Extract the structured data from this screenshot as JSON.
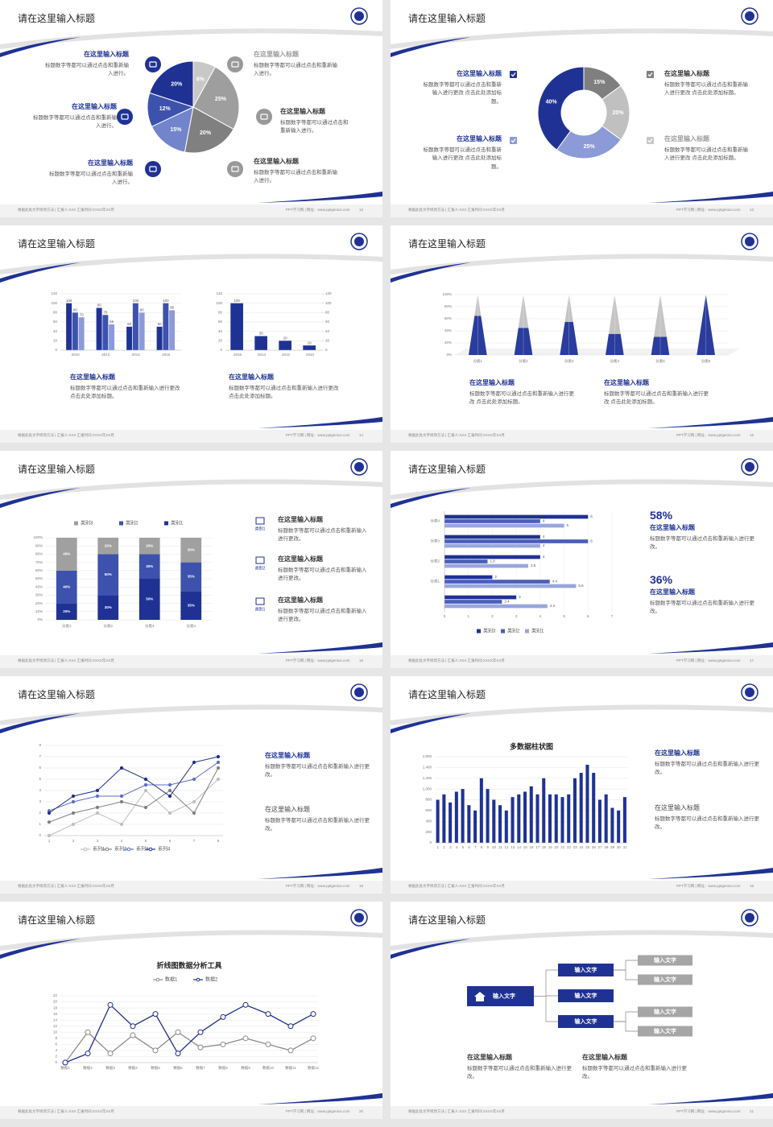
{
  "footer": {
    "left": "根据此处文字修改方法 | 汇报人:XXX 汇报时间:XXXX年XX月",
    "right": "PPT学习网 | 网址：www.pptgenius.com"
  },
  "slides": [
    {
      "title": "请在这里输入标题",
      "page": "12",
      "blocks": [
        {
          "title": "在这里输入标题",
          "body": "标题数字等都可以通过点击和重新输入进行。"
        },
        {
          "title": "在这里输入标题",
          "body": "标题数字等都可以通过点击和重新输入进行。"
        },
        {
          "title": "在这里输入标题",
          "body": "标题数字等都可以通过点击和重新输入进行。"
        },
        {
          "title": "在这里输入标题",
          "body": "标题数字等都可以通过点击和重新输入进行。"
        },
        {
          "title": "在这里输入标题",
          "body": "标题数字等都可以通过点击和重新输入进行。"
        },
        {
          "title": "在这里输入标题",
          "body": "标题数字等都可以通过点击和重新输入进行。"
        }
      ],
      "chart": {
        "type": "pie",
        "values": [
          8,
          25,
          20,
          15,
          12,
          20
        ],
        "value_labels": [
          "8%",
          "25%",
          "20%",
          "15%",
          "12%",
          "20%"
        ],
        "colors": [
          "#c8c8c8",
          "#9e9e9e",
          "#808080",
          "#7284cc",
          "#3d52ad",
          "#1f3294"
        ]
      }
    },
    {
      "title": "请在这里输入标题",
      "page": "13",
      "blocks": [
        {
          "title": "在这里输入标题",
          "body": "标题数字等都可以通过点击和重新输入进行更改 点击此处添加标题。"
        },
        {
          "title": "在这里输入标题",
          "body": "标题数字等都可以通过点击和重新输入进行更改 点击此处添加标题。"
        },
        {
          "title": "在这里输入标题",
          "body": "标题数字等都可以通过点击和重新输入进行更改 点击此处添加标题。"
        },
        {
          "title": "在这里输入标题",
          "body": "标题数字等都可以通过点击和重新输入进行更改 点击此处添加标题。"
        }
      ],
      "chart": {
        "type": "donut",
        "values": [
          15,
          20,
          25,
          40
        ],
        "value_labels": [
          "15%",
          "20%",
          "25%",
          "40%"
        ],
        "colors": [
          "#7f7f7f",
          "#c0c0c0",
          "#8c9ad8",
          "#1f3294"
        ]
      }
    },
    {
      "title": "请在这里输入标题",
      "page": "14",
      "blocks": [
        {
          "title": "在这里输入标题",
          "body": "标题数字等都可以通过点击和重新输入进行更改 点击此处添加标题。"
        },
        {
          "title": "在这里输入标题",
          "body": "标题数字等都可以通过点击和重新输入进行更改 点击此处添加标题。"
        }
      ],
      "charts": [
        {
          "type": "bar",
          "categories": [
            "2010",
            "2012",
            "2014",
            "2016"
          ],
          "series": [
            {
              "color": "#1f3294",
              "values": [
                100,
                90,
                50,
                50
              ]
            },
            {
              "color": "#3d52ad",
              "values": [
                80,
                75,
                100,
                100
              ]
            },
            {
              "color": "#8c9ad8",
              "values": [
                70,
                55,
                80,
                85
              ]
            }
          ],
          "ylim": [
            0,
            120
          ],
          "yticks": [
            0,
            20,
            40,
            60,
            80,
            100,
            120
          ]
        },
        {
          "type": "bar",
          "categories": [
            "2016",
            "2014",
            "2012",
            "2010"
          ],
          "values": [
            100,
            30,
            20,
            10
          ],
          "color": "#1f3294",
          "ylim": [
            0,
            120
          ],
          "yticks": [
            0,
            20,
            40,
            60,
            80,
            100,
            120
          ],
          "y2lim": [
            0,
            120
          ],
          "y2ticks": [
            0,
            20,
            40,
            60,
            80,
            100,
            120
          ]
        }
      ]
    },
    {
      "title": "请在这里输入标题",
      "page": "15",
      "blocks": [
        {
          "title": "在这里输入标题",
          "body": "标题数字等都可以通过点击和重新输入进行更改 点击此处添加标题。"
        },
        {
          "title": "在这里输入标题",
          "body": "标题数字等都可以通过点击和重新输入进行更改 点击此处添加标题。"
        }
      ],
      "chart": {
        "type": "pyramid",
        "categories": [
          "分类1",
          "分类2",
          "分类3",
          "分类4",
          "分类5",
          "分类6"
        ],
        "series": [
          {
            "color": "#2a3c9e",
            "values": [
              65,
              45,
              55,
              35,
              30,
              100
            ]
          },
          {
            "color": "#c4c4c4",
            "values": [
              35,
              55,
              45,
              65,
              70,
              0
            ]
          }
        ],
        "ylim": [
          0,
          100
        ],
        "yticks": [
          {
            "value": 0,
            "label": "0%"
          },
          {
            "value": 20,
            "label": "20%"
          },
          {
            "value": 40,
            "label": "40%"
          },
          {
            "value": 60,
            "label": "60%"
          },
          {
            "value": 80,
            "label": "80%"
          },
          {
            "value": 100,
            "label": "100%"
          }
        ]
      }
    },
    {
      "title": "请在这里输入标题",
      "page": "16",
      "blocks": [
        {
          "icon_label": "类别1",
          "title": "在这里输入标题",
          "body": "标题数字等都可以通过点击和重新输入进行更改。"
        },
        {
          "icon_label": "类别2",
          "title": "在这里输入标题",
          "body": "标题数字等都可以通过点击和重新输入进行更改。"
        },
        {
          "icon_label": "类别1",
          "title": "在这里输入标题",
          "body": "标题数字等都可以通过点击和重新输入进行更改。"
        }
      ],
      "chart": {
        "type": "stacked_bar",
        "categories": [
          "分类1",
          "分类2",
          "分类3",
          "分类4"
        ],
        "series": [
          {
            "name": "类别1",
            "color": "#1f3294",
            "values": [
              20,
              30,
              50,
              35
            ],
            "value_labels": [
              "20%",
              "30%",
              "50%",
              "35%"
            ]
          },
          {
            "name": "类别2",
            "color": "#3d52ad",
            "values": [
              40,
              50,
              30,
              35
            ],
            "value_labels": [
              "40%",
              "50%",
              "30%",
              "35%"
            ]
          },
          {
            "name": "类别3",
            "color": "#a0a0a0",
            "values": [
              40,
              20,
              20,
              30
            ],
            "value_labels": [
              "40%",
              "20%",
              "20%",
              "30%"
            ]
          }
        ],
        "ylim": [
          0,
          100
        ],
        "yticks": [
          {
            "value": 0,
            "label": "0%"
          },
          {
            "value": 10,
            "label": "10%"
          },
          {
            "value": 20,
            "label": "20%"
          },
          {
            "value": 30,
            "label": "30%"
          },
          {
            "value": 40,
            "label": "40%"
          },
          {
            "value": 50,
            "label": "50%"
          },
          {
            "value": 60,
            "label": "60%"
          },
          {
            "value": 70,
            "label": "70%"
          },
          {
            "value": 80,
            "label": "80%"
          },
          {
            "value": 90,
            "label": "90%"
          },
          {
            "value": 100,
            "label": "100%"
          }
        ]
      }
    },
    {
      "title": "请在这里输入标题",
      "page": "17",
      "blocks": [
        {
          "stat": "58%",
          "title": "在这里输入标题",
          "body": "标题数字等都可以通过点击和重新输入进行更改。"
        },
        {
          "stat": "36%",
          "title": "在这里输入标题",
          "body": "标题数字等都可以通过点击和重新输入进行更改。"
        }
      ],
      "chart": {
        "type": "hbar",
        "categories": [
          null,
          "分类1",
          "分类2",
          "分类3",
          "分类4"
        ],
        "series": [
          {
            "name": "类别3",
            "color": "#1f3294",
            "values": [
              3,
              2,
              4,
              4,
              6
            ]
          },
          {
            "name": "类别2",
            "color": "#4a5fb8",
            "values": [
              2.4,
              4.4,
              1.8,
              6,
              4
            ]
          },
          {
            "name": "类别1",
            "color": "#98a6dc",
            "values": [
              4.3,
              5.5,
              3.5,
              4,
              5
            ]
          }
        ],
        "xlim": [
          0,
          7
        ],
        "xticks": [
          0,
          1,
          2,
          3,
          4,
          5,
          6,
          7
        ]
      }
    },
    {
      "title": "请在这里输入标题",
      "page": "18",
      "blocks": [
        {
          "title": "在这里输入标题",
          "body": "标题数字等都可以通过点击和重新输入进行更改。"
        },
        {
          "title": "在这里输入标题",
          "body": "标题数字等都可以通过点击和重新输入进行更改。"
        }
      ],
      "chart": {
        "type": "line",
        "categories": [
          "1",
          "2",
          "3",
          "4",
          "5",
          "6",
          "7",
          "8"
        ],
        "series": [
          {
            "name": "系列1",
            "color": "#bfbfbf",
            "values": [
              0,
              1,
              2,
              1,
              4,
              2,
              3,
              5
            ]
          },
          {
            "name": "系列2",
            "color": "#7f7f7f",
            "values": [
              1.2,
              2,
              2.5,
              3,
              2.5,
              4,
              2,
              6
            ]
          },
          {
            "name": "系列3",
            "color": "#5a6fc4",
            "values": [
              2.2,
              3,
              3.5,
              3.5,
              4.5,
              4.5,
              5,
              6.5
            ]
          },
          {
            "name": "系列4",
            "color": "#1f2f8a",
            "values": [
              2,
              3.5,
              4,
              6,
              5,
              3.5,
              6.5,
              7
            ]
          }
        ],
        "ylim": [
          0,
          8
        ],
        "yticks": [
          0,
          1,
          2,
          3,
          4,
          5,
          6,
          7,
          8
        ]
      }
    },
    {
      "title": "请在这里输入标题",
      "page": "19",
      "blocks": [
        {
          "title": "在这里输入标题",
          "body": "标题数字等都可以通过点击和重新输入进行更改。"
        },
        {
          "title": "在这里输入标题",
          "body": "标题数字等都可以通过点击和重新输入进行更改。"
        }
      ],
      "chart": {
        "type": "bar",
        "title": "多数据柱状图",
        "categories": [
          "1",
          "2",
          "3",
          "4",
          "5",
          "6",
          "7",
          "8",
          "9",
          "10",
          "11",
          "12",
          "13",
          "14",
          "15",
          "16",
          "17",
          "18",
          "19",
          "20",
          "21",
          "22",
          "23",
          "24",
          "25",
          "26",
          "27",
          "28",
          "29",
          "30",
          "31"
        ],
        "values": [
          800,
          900,
          750,
          950,
          1000,
          700,
          600,
          1200,
          1000,
          800,
          700,
          600,
          850,
          900,
          950,
          1050,
          900,
          1200,
          900,
          900,
          850,
          900,
          1200,
          1300,
          1450,
          1300,
          800,
          900,
          650,
          600,
          850
        ],
        "color": "#1f3294",
        "ylim": [
          0,
          1600
        ],
        "yticks": [
          0,
          200,
          400,
          600,
          800,
          {
            "value": 1000,
            "label": "1,000"
          },
          {
            "value": 1200,
            "label": "1,200"
          },
          {
            "value": 1400,
            "label": "1,400"
          },
          {
            "value": 1600,
            "label": "1,600"
          }
        ]
      }
    },
    {
      "title": "请在这里输入标题",
      "page": "20",
      "chart": {
        "type": "line",
        "title": "折线图数据分析工具",
        "markers": "hollow",
        "categories": [
          "数据1",
          "数据2",
          "数据3",
          "数据4",
          "数据5",
          "数据6",
          "数据7",
          "数据8",
          "数据9",
          "数据10",
          "数据11",
          "数据12"
        ],
        "series": [
          {
            "name": "数据1",
            "color": "#8c8c8c",
            "values": [
              0,
              10,
              3,
              9,
              4,
              10,
              5,
              6,
              8,
              6,
              4,
              8
            ]
          },
          {
            "name": "数据2",
            "color": "#1f2f8a",
            "values": [
              0,
              3,
              19,
              12,
              16,
              3,
              10,
              15,
              19,
              16,
              12,
              16
            ]
          }
        ],
        "ylim": [
          0,
          22
        ],
        "yticks": [
          0,
          2,
          4,
          6,
          8,
          10,
          12,
          14,
          16,
          18,
          20,
          22
        ]
      }
    },
    {
      "title": "请在这里输入标题",
      "page": "21",
      "blocks": [
        {
          "title": "在这里输入标题",
          "body": "标题数字等都可以通过点击和重新输入进行更改。"
        },
        {
          "title": "在这里输入标题",
          "body": "标题数字等都可以通过点击和重新输入进行更改。"
        }
      ],
      "diagram": {
        "root": "输入文字",
        "children": [
          {
            "label": "输入文字",
            "children": [
              "输入文字",
              "输入文字"
            ]
          },
          {
            "label": "输入文字"
          },
          {
            "label": "输入文字",
            "children": [
              "输入文字",
              "输入文字"
            ]
          }
        ]
      }
    }
  ]
}
